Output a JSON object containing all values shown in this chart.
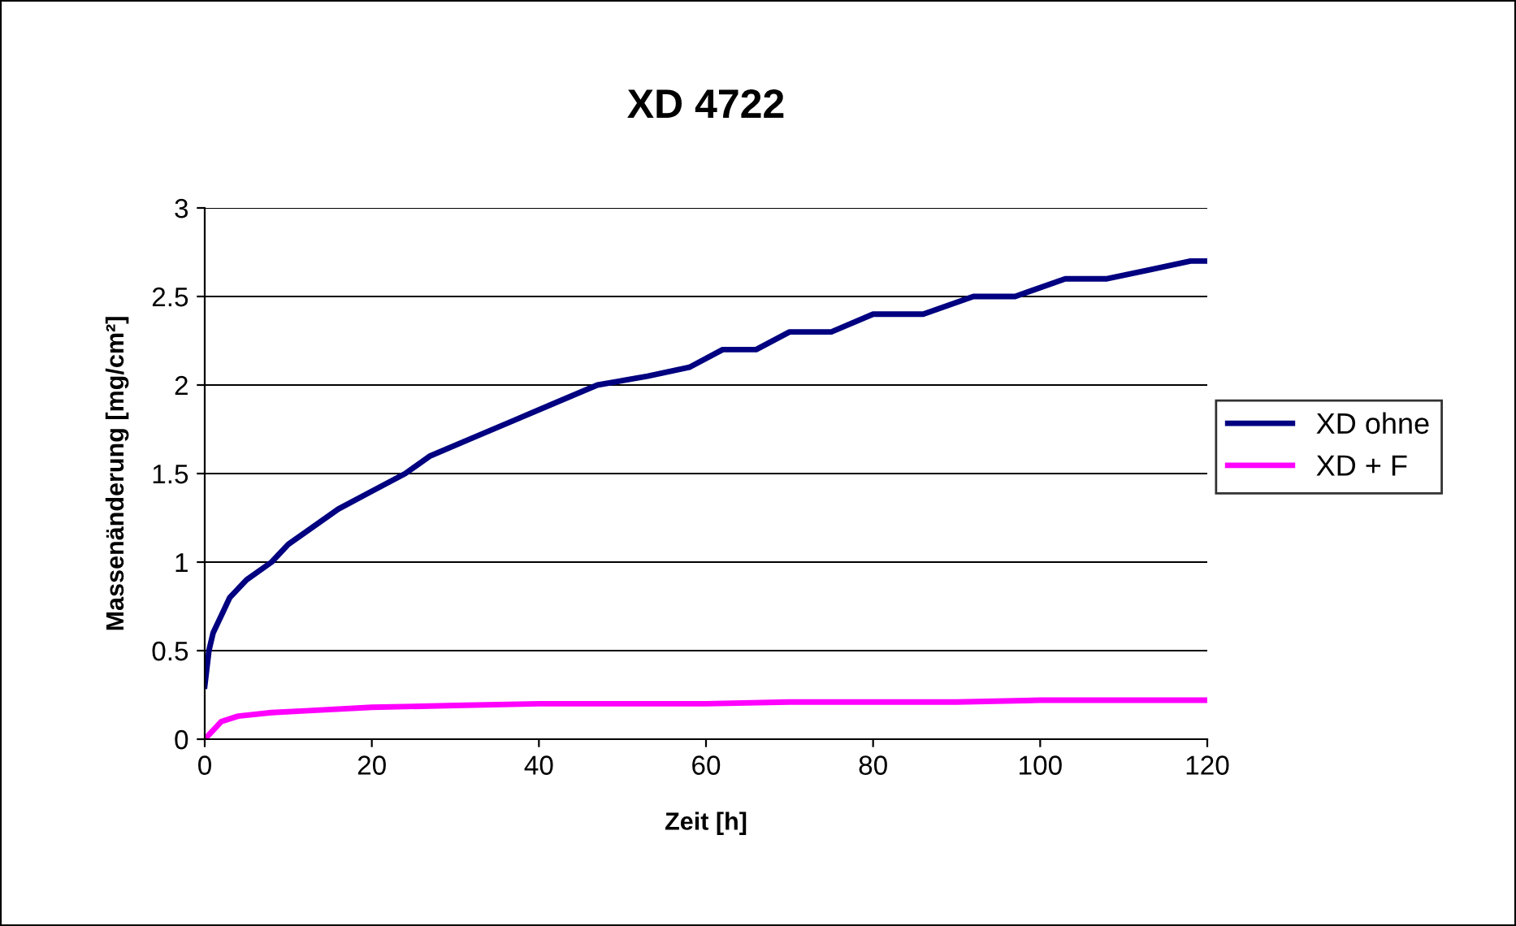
{
  "chart_data": {
    "type": "line",
    "title": "XD 4722",
    "xlabel": "Zeit [h]",
    "ylabel": "Massenänderung [mg/cm²]",
    "xlim": [
      0,
      120
    ],
    "xticks": [
      0,
      20,
      40,
      60,
      80,
      100,
      120
    ],
    "ylim": [
      0,
      3
    ],
    "yticks": [
      0,
      0.5,
      1,
      1.5,
      2,
      2.5,
      3
    ],
    "grid": "y",
    "legend": "right",
    "marker": "none",
    "line_style": "solid",
    "series": [
      {
        "name": "XD ohne",
        "color": "#000080",
        "x": [
          0,
          0.5,
          1,
          2,
          3,
          5,
          8,
          10,
          13,
          16,
          20,
          24,
          27,
          32,
          37,
          42,
          47,
          53,
          58,
          62,
          66,
          70,
          75,
          80,
          86,
          92,
          97,
          103,
          108,
          113,
          118,
          120
        ],
        "values": [
          0.3,
          0.5,
          0.6,
          0.7,
          0.8,
          0.9,
          1.0,
          1.1,
          1.2,
          1.3,
          1.4,
          1.5,
          1.6,
          1.7,
          1.8,
          1.9,
          2.0,
          2.05,
          2.1,
          2.2,
          2.2,
          2.3,
          2.3,
          2.4,
          2.4,
          2.5,
          2.5,
          2.6,
          2.6,
          2.65,
          2.7,
          2.7
        ]
      },
      {
        "name": "XD + F",
        "color": "#ff00ff",
        "x": [
          0,
          1,
          2,
          4,
          8,
          12,
          20,
          30,
          40,
          50,
          60,
          70,
          80,
          90,
          100,
          110,
          120
        ],
        "values": [
          0,
          0.05,
          0.1,
          0.13,
          0.15,
          0.16,
          0.18,
          0.19,
          0.2,
          0.2,
          0.2,
          0.21,
          0.21,
          0.21,
          0.22,
          0.22,
          0.22
        ]
      }
    ]
  }
}
